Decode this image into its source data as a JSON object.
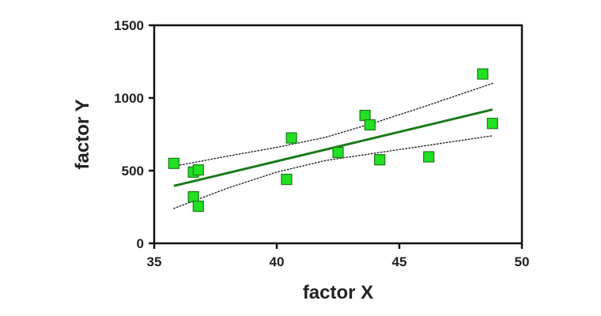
{
  "chart_data": {
    "type": "scatter",
    "xlabel": "factor X",
    "ylabel": "factor Y",
    "xlim": [
      35,
      50
    ],
    "ylim": [
      0,
      1500
    ],
    "xticks": [
      35,
      40,
      45,
      50
    ],
    "yticks": [
      0,
      500,
      1000,
      1500
    ],
    "xtick_labels": [
      "35",
      "40",
      "45",
      "50"
    ],
    "ytick_labels": [
      "0",
      "500",
      "1000",
      "1500"
    ],
    "grid": false,
    "legend": "none",
    "series": [
      {
        "type": "scatter",
        "marker": "square",
        "color": "#22e022",
        "edge_color": "#1a7a1a",
        "points": [
          {
            "x": 35.8,
            "y": 550
          },
          {
            "x": 36.6,
            "y": 490
          },
          {
            "x": 36.8,
            "y": 505
          },
          {
            "x": 36.6,
            "y": 320
          },
          {
            "x": 36.8,
            "y": 255
          },
          {
            "x": 40.4,
            "y": 440
          },
          {
            "x": 40.6,
            "y": 725
          },
          {
            "x": 42.5,
            "y": 625
          },
          {
            "x": 43.6,
            "y": 880
          },
          {
            "x": 43.8,
            "y": 815
          },
          {
            "x": 44.2,
            "y": 575
          },
          {
            "x": 46.2,
            "y": 595
          },
          {
            "x": 48.4,
            "y": 1165
          },
          {
            "x": 48.8,
            "y": 825
          }
        ]
      },
      {
        "type": "line",
        "style": "solid",
        "color": "#1a7a1a",
        "points": [
          {
            "x": 35.8,
            "y": 395
          },
          {
            "x": 48.8,
            "y": 920
          }
        ]
      },
      {
        "type": "line",
        "style": "dotted",
        "color": "#222222",
        "points": [
          {
            "x": 35.8,
            "y": 530
          },
          {
            "x": 38.0,
            "y": 600
          },
          {
            "x": 40.0,
            "y": 660
          },
          {
            "x": 42.0,
            "y": 730
          },
          {
            "x": 44.0,
            "y": 830
          },
          {
            "x": 46.0,
            "y": 940
          },
          {
            "x": 48.8,
            "y": 1100
          }
        ]
      },
      {
        "type": "line",
        "style": "dotted",
        "color": "#222222",
        "points": [
          {
            "x": 35.8,
            "y": 240
          },
          {
            "x": 38.0,
            "y": 380
          },
          {
            "x": 40.0,
            "y": 490
          },
          {
            "x": 42.0,
            "y": 570
          },
          {
            "x": 44.0,
            "y": 620
          },
          {
            "x": 46.0,
            "y": 670
          },
          {
            "x": 48.8,
            "y": 740
          }
        ]
      }
    ]
  }
}
